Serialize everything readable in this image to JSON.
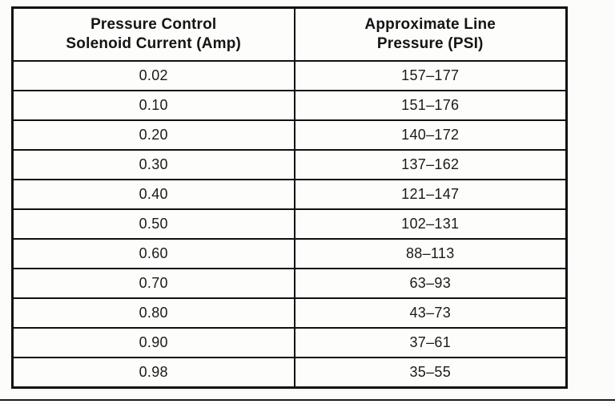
{
  "table": {
    "headers": [
      {
        "text": "Pressure Control\nSolenoid Current (Amp)"
      },
      {
        "text": "Approximate Line\nPressure (PSI)"
      }
    ],
    "rows": [
      {
        "current": "0.02",
        "pressure": "157–177"
      },
      {
        "current": "0.10",
        "pressure": "151–176"
      },
      {
        "current": "0.20",
        "pressure": "140–172"
      },
      {
        "current": "0.30",
        "pressure": "137–162"
      },
      {
        "current": "0.40",
        "pressure": "121–147"
      },
      {
        "current": "0.50",
        "pressure": "102–131"
      },
      {
        "current": "0.60",
        "pressure": "88–113"
      },
      {
        "current": "0.70",
        "pressure": "63–93"
      },
      {
        "current": "0.80",
        "pressure": "43–73"
      },
      {
        "current": "0.90",
        "pressure": "37–61"
      },
      {
        "current": "0.98",
        "pressure": "35–55"
      }
    ],
    "colors": {
      "border": "#111111",
      "text": "#1a1a1a",
      "background": "#fcfcfb"
    }
  }
}
